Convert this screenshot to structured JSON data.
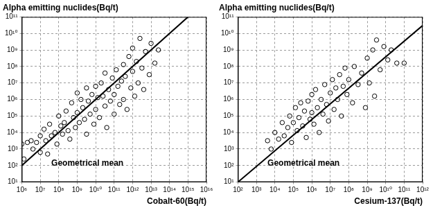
{
  "chart_data": [
    {
      "type": "scatter",
      "title": "Alpha emitting nuclides(Bq/t)",
      "x_label": "Cobalt-60(Bq/t)",
      "log": true,
      "grid": true,
      "xlim": [
        1000000.0,
        1e+16
      ],
      "ylim": [
        10.0,
        100000000000.0
      ],
      "xticks": [
        {
          "value": 1000000.0,
          "label": "10⁶"
        },
        {
          "value": 10000000.0,
          "label": "10⁷"
        },
        {
          "value": 100000000.0,
          "label": "10⁸"
        },
        {
          "value": 1000000000.0,
          "label": "10⁹"
        },
        {
          "value": 10000000000.0,
          "label": "10¹⁰"
        },
        {
          "value": 100000000000.0,
          "label": "10¹¹"
        },
        {
          "value": 1000000000000.0,
          "label": "10¹²"
        },
        {
          "value": 10000000000000.0,
          "label": "10¹³"
        },
        {
          "value": 100000000000000.0,
          "label": "10¹⁴"
        },
        {
          "value": 1000000000000000.0,
          "label": "10¹⁵"
        },
        {
          "value": 1e+16,
          "label": "10¹⁶"
        }
      ],
      "yticks": [
        {
          "value": 10.0,
          "label": "10¹"
        },
        {
          "value": 100.0,
          "label": "10²"
        },
        {
          "value": 1000.0,
          "label": "10³"
        },
        {
          "value": 10000.0,
          "label": "10⁴"
        },
        {
          "value": 100000.0,
          "label": "10⁵"
        },
        {
          "value": 1000000.0,
          "label": "10⁶"
        },
        {
          "value": 10000000.0,
          "label": "10⁷"
        },
        {
          "value": 100000000.0,
          "label": "10⁸"
        },
        {
          "value": 1000000000.0,
          "label": "10⁹"
        },
        {
          "value": 10000000000.0,
          "label": "10¹⁰"
        },
        {
          "value": 100000000000.0,
          "label": "10¹¹"
        }
      ],
      "series": [
        {
          "type": "scatter",
          "marker": "circle-open",
          "color": "#000000",
          "x": [
            1000000.0,
            1300000.0,
            2000000.0,
            3200000.0,
            4000000.0,
            6300000.0,
            10000000.0,
            10000000.0,
            16000000.0,
            20000000.0,
            25000000.0,
            32000000.0,
            40000000.0,
            63000000.0,
            80000000.0,
            100000000.0,
            130000000.0,
            160000000.0,
            200000000.0,
            250000000.0,
            320000000.0,
            400000000.0,
            500000000.0,
            630000000.0,
            800000000.0,
            1000000000.0,
            1000000000.0,
            1300000000.0,
            1600000000.0,
            2000000000.0,
            2500000000.0,
            3200000000.0,
            3200000000.0,
            4000000000.0,
            5000000000.0,
            6300000000.0,
            8000000000.0,
            10000000000.0,
            10000000000.0,
            13000000000.0,
            16000000000.0,
            20000000000.0,
            25000000000.0,
            32000000000.0,
            32000000000.0,
            40000000000.0,
            50000000000.0,
            63000000000.0,
            80000000000.0,
            100000000000.0,
            100000000000.0,
            130000000000.0,
            160000000000.0,
            200000000000.0,
            250000000000.0,
            320000000000.0,
            320000000000.0,
            400000000000.0,
            500000000000.0,
            630000000000.0,
            800000000000.0,
            1000000000000.0,
            1000000000000.0,
            1300000000000.0,
            1600000000000.0,
            2000000000000.0,
            2500000000000.0,
            3200000000000.0,
            4000000000000.0,
            5000000000000.0,
            8000000000000.0,
            10000000000000.0,
            16000000000000.0,
            25000000000000.0
          ],
          "y": [
            2000.0,
            250.0,
            2500.0,
            3200.0,
            1000.0,
            2500.0,
            6300.0,
            630.0,
            16000.0,
            3200.0,
            500.0,
            32000.0,
            6300.0,
            10000.0,
            2000.0,
            100000.0,
            25000.0,
            8000.0,
            40000.0,
            200000.0,
            13000.0,
            4000.0,
            630000.0,
            80000.0,
            20000.0,
            2500000.0,
            160000.0,
            40000.0,
            1000000.0,
            320000.0,
            63000.0,
            5000000.0,
            8000.0,
            800000.0,
            130000.0,
            2000000.0,
            32000.0,
            6300000.0,
            250000.0,
            1300000.0,
            80000.0,
            10000000.0,
            1600000.0,
            400000.0,
            40000000.0,
            20000.0,
            4000000.0,
            800000.0,
            20000000.0,
            2000000.0,
            130000.0,
            63000000.0,
            6300000.0,
            500000.0,
            13000000.0,
            130000000.0,
            1000000.0,
            25000000.0,
            250000.0,
            400000000.0,
            5000000.0,
            50000000.0,
            1300000000.0,
            1600000.0,
            200000000.0,
            10000000.0,
            5000000000.0,
            80000000.0,
            4000000.0,
            800000000.0,
            32000000.0,
            2500000000.0,
            160000000.0,
            1000000000.0
          ]
        },
        {
          "name": "Geometrical mean",
          "type": "line",
          "line_style": "solid",
          "color": "#000000",
          "x": [
            1000000.0,
            1000000000000000.0
          ],
          "y": [
            100.0,
            100000000000.0
          ]
        }
      ]
    },
    {
      "type": "scatter",
      "title": "Alpha emitting nuclides(Bq/t)",
      "x_label": "Cesium-137(Bq/t)",
      "log": true,
      "grid": true,
      "xlim": [
        100.0,
        1000000000000.0
      ],
      "ylim": [
        10.0,
        100000000000.0
      ],
      "xticks": [
        {
          "value": 100.0,
          "label": "10²"
        },
        {
          "value": 1000.0,
          "label": "10³"
        },
        {
          "value": 10000.0,
          "label": "10⁴"
        },
        {
          "value": 100000.0,
          "label": "10⁵"
        },
        {
          "value": 1000000.0,
          "label": "10⁶"
        },
        {
          "value": 10000000.0,
          "label": "10⁷"
        },
        {
          "value": 100000000.0,
          "label": "10⁸"
        },
        {
          "value": 1000000000.0,
          "label": "10⁹"
        },
        {
          "value": 10000000000.0,
          "label": "10¹⁰"
        },
        {
          "value": 100000000000.0,
          "label": "10¹¹"
        },
        {
          "value": 1000000000000.0,
          "label": "10¹²"
        }
      ],
      "yticks": [
        {
          "value": 10.0,
          "label": "10¹"
        },
        {
          "value": 100.0,
          "label": "10²"
        },
        {
          "value": 1000.0,
          "label": "10³"
        },
        {
          "value": 10000.0,
          "label": "10⁴"
        },
        {
          "value": 100000.0,
          "label": "10⁵"
        },
        {
          "value": 1000000.0,
          "label": "10⁶"
        },
        {
          "value": 10000000.0,
          "label": "10⁷"
        },
        {
          "value": 100000000.0,
          "label": "10⁸"
        },
        {
          "value": 1000000000.0,
          "label": "10⁹"
        },
        {
          "value": 10000000000.0,
          "label": "10¹⁰"
        },
        {
          "value": 100000000000.0,
          "label": "10¹¹"
        }
      ],
      "series": [
        {
          "type": "scatter",
          "marker": "circle-open",
          "color": "#000000",
          "x": [
            4000.0,
            6300.0,
            10000.0,
            16000.0,
            25000.0,
            32000.0,
            50000.0,
            63000.0,
            80000.0,
            100000.0,
            130000.0,
            160000.0,
            200000.0,
            250000.0,
            320000.0,
            400000.0,
            500000.0,
            630000.0,
            800000.0,
            1000000.0,
            1000000.0,
            1300000.0,
            1600000.0,
            2000000.0,
            2500000.0,
            3200000.0,
            4000000.0,
            5000000.0,
            6300000.0,
            8000000.0,
            10000000.0,
            13000000.0,
            16000000.0,
            20000000.0,
            25000000.0,
            32000000.0,
            40000000.0,
            50000000.0,
            63000000.0,
            80000000.0,
            100000000.0,
            160000000.0,
            200000000.0,
            320000000.0,
            500000000.0,
            800000000.0,
            1000000000.0,
            1300000000.0,
            2000000000.0,
            2500000000.0,
            3200000000.0,
            5000000000.0,
            8000000000.0,
            13000000000.0,
            20000000000.0,
            40000000000.0,
            100000000000.0
          ],
          "y": [
            3200.0,
            1000.0,
            10000.0,
            4000.0,
            40000.0,
            6300.0,
            20000.0,
            100000.0,
            2500.0,
            40000.0,
            320000.0,
            13000.0,
            80000.0,
            630000.0,
            25000.0,
            200000.0,
            5000.0,
            800000.0,
            63000.0,
            2000000.0,
            160000.0,
            32000.0,
            4000000.0,
            320000.0,
            10000.0,
            1000000.0,
            130000.0,
            8000000.0,
            500000.0,
            50000.0,
            2500000.0,
            16000000.0,
            250000.0,
            5000000.0,
            1000000.0,
            32000000.0,
            100000.0,
            6300000.0,
            80000000.0,
            2000000.0,
            16000000.0,
            630000.0,
            100000000.0,
            8000000.0,
            40000000.0,
            320000.0,
            320000000.0,
            10000000.0,
            1000000000.0,
            1600000.0,
            4000000000.0,
            63000000.0,
            1600000000.0,
            250000000.0,
            1000000000.0,
            160000000.0,
            160000000.0
          ]
        },
        {
          "name": "Geometrical mean",
          "type": "line",
          "line_style": "solid",
          "color": "#000000",
          "x": [
            100.0,
            1000000000000.0
          ],
          "y": [
            10.0,
            30000000000.0
          ]
        }
      ]
    }
  ]
}
